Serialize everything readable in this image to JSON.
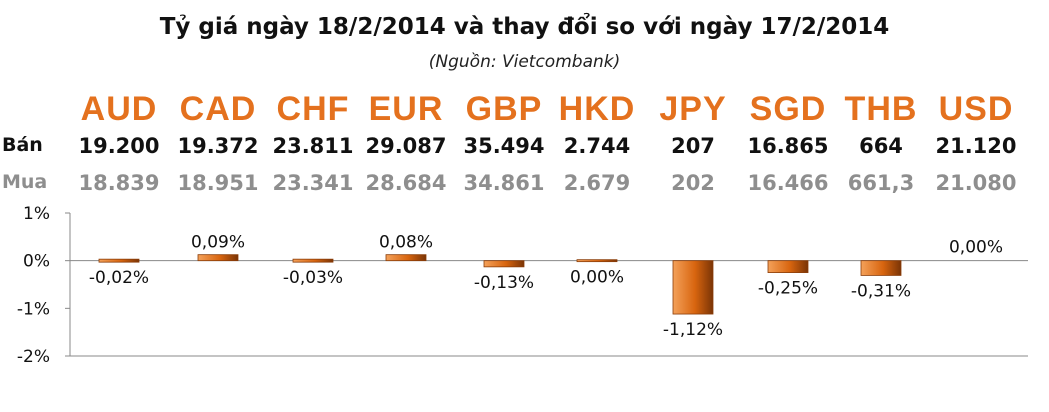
{
  "title": "Tỷ giá ngày 18/2/2014 và thay đổi so với ngày 17/2/2014",
  "subtitle": "(Nguồn: Vietcombank)",
  "rows": {
    "sell_label": "Bán",
    "buy_label": "Mua"
  },
  "currencies": [
    {
      "code": "AUD",
      "sell": "19.200",
      "buy": "18.839",
      "change_label": "-0,02%"
    },
    {
      "code": "CAD",
      "sell": "19.372",
      "buy": "18.951",
      "change_label": "0,09%"
    },
    {
      "code": "CHF",
      "sell": "23.811",
      "buy": "23.341",
      "change_label": "-0,03%"
    },
    {
      "code": "EUR",
      "sell": "29.087",
      "buy": "28.684",
      "change_label": "0,08%"
    },
    {
      "code": "GBP",
      "sell": "35.494",
      "buy": "34.861",
      "change_label": "-0,13%"
    },
    {
      "code": "HKD",
      "sell": "2.744",
      "buy": "2.679",
      "change_label": "0,00%"
    },
    {
      "code": "JPY",
      "sell": "207",
      "buy": "202",
      "change_label": "-1,12%"
    },
    {
      "code": "SGD",
      "sell": "16.865",
      "buy": "16.466",
      "change_label": "-0,25%"
    },
    {
      "code": "THB",
      "sell": "664",
      "buy": "661,3",
      "change_label": "-0,31%"
    },
    {
      "code": "USD",
      "sell": "21.120",
      "buy": "21.080",
      "change_label": "0,00%"
    }
  ],
  "colors": {
    "accent": "#e4711e",
    "bar_light": "#f4a15a",
    "bar_dark": "#7a3406",
    "buy_text": "#8e8e8e",
    "axis": "#888888"
  },
  "chart_data": {
    "type": "bar",
    "categories": [
      "AUD",
      "CAD",
      "CHF",
      "EUR",
      "GBP",
      "HKD",
      "JPY",
      "SGD",
      "THB",
      "USD"
    ],
    "values": [
      -0.02,
      0.09,
      -0.03,
      0.08,
      -0.13,
      0.0,
      -1.12,
      -0.25,
      -0.31,
      0.0
    ],
    "unit": "%",
    "ylim": [
      -2,
      1
    ],
    "yticks": [
      1,
      0,
      -1,
      -2
    ],
    "ytick_labels": [
      "1%",
      "0%",
      "-1%",
      "-2%"
    ],
    "grid": false,
    "legend": "none"
  }
}
